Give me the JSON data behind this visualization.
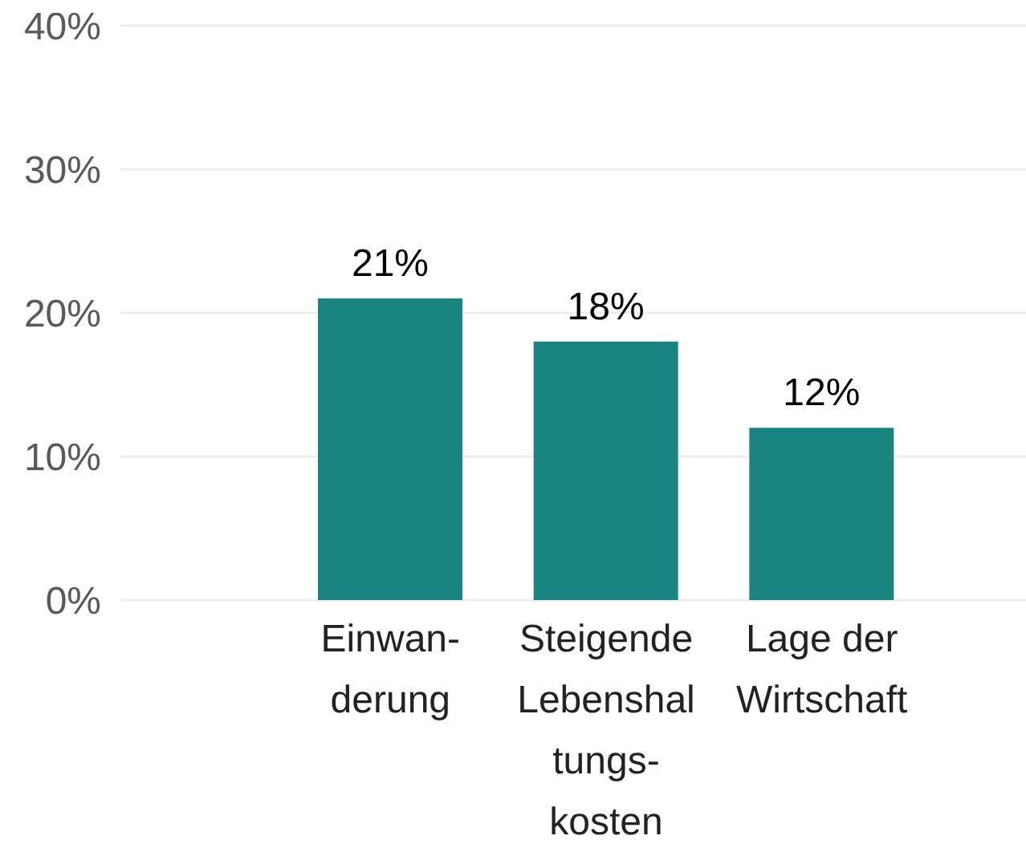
{
  "chart_data": {
    "type": "bar",
    "categories": [
      "Einwan- derung",
      "Steigende Lebenshal tungs- kosten",
      "Lage der Wirtschaft"
    ],
    "values": [
      21,
      18,
      12
    ],
    "color": "#1a8481",
    "value_labels": [
      "21%",
      "18%",
      "12%"
    ],
    "ylim": [
      0,
      40
    ],
    "yticks": [
      {
        "value": 0,
        "label": "0%"
      },
      {
        "value": 10,
        "label": "10%"
      },
      {
        "value": 20,
        "label": "20%"
      },
      {
        "value": 30,
        "label": "30%"
      },
      {
        "value": 40,
        "label": "40%"
      }
    ],
    "grid": "y"
  }
}
